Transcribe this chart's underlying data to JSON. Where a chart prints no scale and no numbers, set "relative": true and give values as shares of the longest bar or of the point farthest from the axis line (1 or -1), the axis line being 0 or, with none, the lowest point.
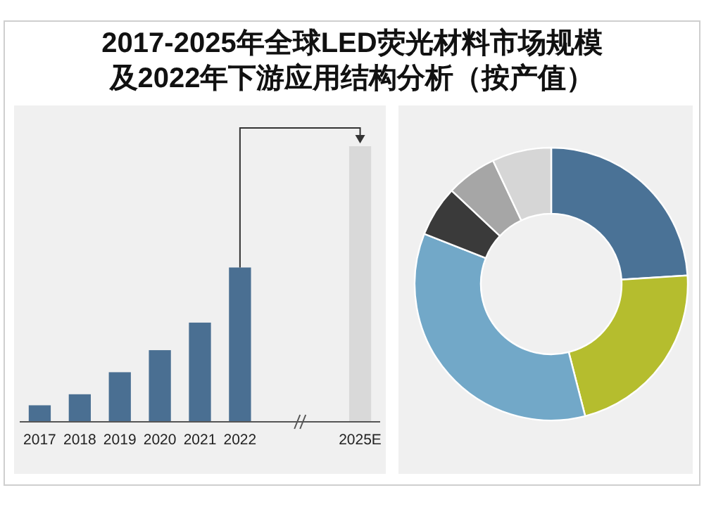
{
  "chart_data": [
    {
      "type": "bar",
      "title": "2017-2025年全球LED荧光材料市场规模及2022年下游应用结构分析（按产值）",
      "relative": true,
      "categories": [
        "2017",
        "2018",
        "2019",
        "2020",
        "2021",
        "2022",
        null,
        null,
        "2025E"
      ],
      "values": [
        0.06,
        0.1,
        0.18,
        0.26,
        0.36,
        0.56,
        null,
        null,
        1
      ],
      "colors": [
        "#4a6f92",
        "#4a6f92",
        "#4a6f92",
        "#4a6f92",
        "#4a6f92",
        "#4a6f92",
        null,
        null,
        "#d9d9d9"
      ]
    },
    {
      "type": "donut",
      "categories": [
        null,
        null,
        null,
        null,
        null,
        null
      ],
      "values": [
        24,
        22,
        35,
        6,
        6,
        7
      ],
      "colors": [
        "#4a7296",
        "#b5bd2e",
        "#72a8c8",
        "#3a3a3a",
        "#a6a6a6",
        "#d6d6d6"
      ]
    }
  ]
}
